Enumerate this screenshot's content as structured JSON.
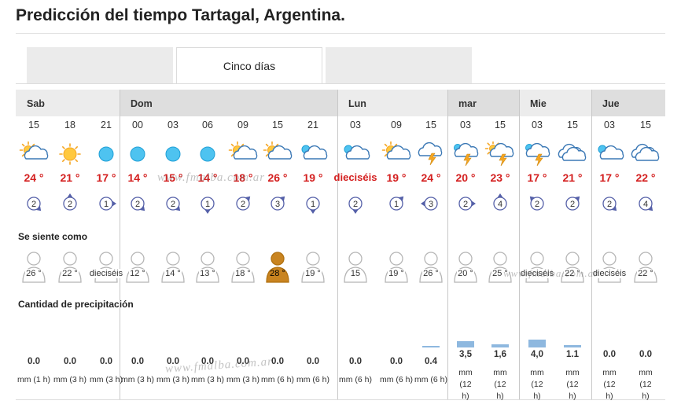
{
  "page": {
    "title": "Predicción del tiempo Tartagal, Argentina."
  },
  "tabs": [
    {
      "label": "",
      "active": false
    },
    {
      "label": "Cinco días",
      "active": true
    },
    {
      "label": "",
      "active": false
    }
  ],
  "sections": {
    "feels_like": "Se siente como",
    "precipitation": "Cantidad de precipitación"
  },
  "days": [
    {
      "name": "Sab",
      "start": 0,
      "count": 3
    },
    {
      "name": "Dom",
      "start": 3,
      "count": 6
    },
    {
      "name": "Lun",
      "start": 9,
      "count": 3
    },
    {
      "name": "mar",
      "start": 12,
      "count": 2
    },
    {
      "name": "Mie",
      "start": 14,
      "count": 2
    },
    {
      "name": "Jue",
      "start": 16,
      "count": 2
    }
  ],
  "slots": [
    {
      "hour": "15",
      "icon": "sun-cloud",
      "temp": "24 °",
      "wind": "2",
      "wind_dir": "SE",
      "feel": "26 °",
      "feel_hot": false,
      "rain": "0.0",
      "rain_unit": "mm (1 h)",
      "rain_amount": 0
    },
    {
      "hour": "18",
      "icon": "sun",
      "temp": "21 °",
      "wind": "2",
      "wind_dir": "N",
      "feel": "22 °",
      "feel_hot": false,
      "rain": "0.0",
      "rain_unit": "mm (3 h)",
      "rain_amount": 0
    },
    {
      "hour": "21",
      "icon": "moon",
      "temp": "17 °",
      "wind": "1",
      "wind_dir": "E",
      "feel": "dieciséis",
      "feel_hot": false,
      "rain": "0.0",
      "rain_unit": "mm (3 h)",
      "rain_amount": 0
    },
    {
      "hour": "00",
      "icon": "moon",
      "temp": "14 °",
      "wind": "2",
      "wind_dir": "SE",
      "feel": "12 °",
      "feel_hot": false,
      "rain": "0.0",
      "rain_unit": "mm (3 h)",
      "rain_amount": 0
    },
    {
      "hour": "03",
      "icon": "moon",
      "temp": "15 °",
      "wind": "2",
      "wind_dir": "SE",
      "feel": "14 °",
      "feel_hot": false,
      "rain": "0.0",
      "rain_unit": "mm (3 h)",
      "rain_amount": 0
    },
    {
      "hour": "06",
      "icon": "moon",
      "temp": "14 °",
      "wind": "1",
      "wind_dir": "S",
      "feel": "13 °",
      "feel_hot": false,
      "rain": "0.0",
      "rain_unit": "mm (3 h)",
      "rain_amount": 0
    },
    {
      "hour": "09",
      "icon": "sun-cloud",
      "temp": "18 °",
      "wind": "2",
      "wind_dir": "NE",
      "feel": "18 °",
      "feel_hot": false,
      "rain": "0.0",
      "rain_unit": "mm (3 h)",
      "rain_amount": 0
    },
    {
      "hour": "15",
      "icon": "sun-cloud",
      "temp": "26 °",
      "wind": "3",
      "wind_dir": "NE",
      "feel": "28 °",
      "feel_hot": true,
      "rain": "0.0",
      "rain_unit": "mm (6 h)",
      "rain_amount": 0
    },
    {
      "hour": "21",
      "icon": "moon-cloud",
      "temp": "19 °",
      "wind": "1",
      "wind_dir": "S",
      "feel": "19 °",
      "feel_hot": false,
      "rain": "0.0",
      "rain_unit": "mm (6 h)",
      "rain_amount": 0
    },
    {
      "hour": "03",
      "icon": "moon-cloud",
      "temp": "dieciséis",
      "wind": "2",
      "wind_dir": "S",
      "feel": "15",
      "feel_hot": false,
      "rain": "0.0",
      "rain_unit": "mm (6 h)",
      "rain_amount": 0
    },
    {
      "hour": "09",
      "icon": "sun-cloud",
      "temp": "19 °",
      "wind": "1",
      "wind_dir": "NE",
      "feel": "19 °",
      "feel_hot": false,
      "rain": "0.0",
      "rain_unit": "mm (6 h)",
      "rain_amount": 0
    },
    {
      "hour": "15",
      "icon": "storm",
      "temp": "24 °",
      "wind": "3",
      "wind_dir": "W",
      "feel": "26 °",
      "feel_hot": false,
      "rain": "0.4",
      "rain_unit": "mm (6 h)",
      "rain_amount": 0.4
    },
    {
      "hour": "03",
      "icon": "moon-storm",
      "temp": "20 °",
      "wind": "2",
      "wind_dir": "E",
      "feel": "20 °",
      "feel_hot": false,
      "rain": "3,5",
      "rain_unit": "mm (12 h)",
      "rain_amount": 3.5
    },
    {
      "hour": "15",
      "icon": "sun-storm",
      "temp": "23 °",
      "wind": "4",
      "wind_dir": "N",
      "feel": "25 °",
      "feel_hot": false,
      "rain": "1,6",
      "rain_unit": "mm (12 h)",
      "rain_amount": 1.6
    },
    {
      "hour": "03",
      "icon": "moon-storm",
      "temp": "17 °",
      "wind": "2",
      "wind_dir": "NW",
      "feel": "dieciséis",
      "feel_hot": false,
      "rain": "4,0",
      "rain_unit": "mm (12 h)",
      "rain_amount": 4.0
    },
    {
      "hour": "15",
      "icon": "cloud",
      "temp": "21 °",
      "wind": "2",
      "wind_dir": "NE",
      "feel": "22 °",
      "feel_hot": false,
      "rain": "1.1",
      "rain_unit": "mm (12 h)",
      "rain_amount": 1.1
    },
    {
      "hour": "03",
      "icon": "moon-cloud",
      "temp": "17 °",
      "wind": "2",
      "wind_dir": "SE",
      "feel": "dieciséis",
      "feel_hot": false,
      "rain": "0.0",
      "rain_unit": "mm (12 h)",
      "rain_amount": 0
    },
    {
      "hour": "15",
      "icon": "cloud",
      "temp": "22 °",
      "wind": "4",
      "wind_dir": "SE",
      "feel": "22 °",
      "feel_hot": false,
      "rain": "0.0",
      "rain_unit": "mm (12 h)",
      "rain_amount": 0
    }
  ],
  "watermark": [
    "www.fmalba.com.ar",
    "www.fmalba.com.ar",
    "www.fmalba.com.ar"
  ],
  "colors": {
    "temp": "#d42020",
    "sun": "#f5a623",
    "moon": "#27a9e1",
    "rain_bar": "#8eb8df",
    "feel_hot": "#c98420",
    "person": "#b5b5b5"
  }
}
